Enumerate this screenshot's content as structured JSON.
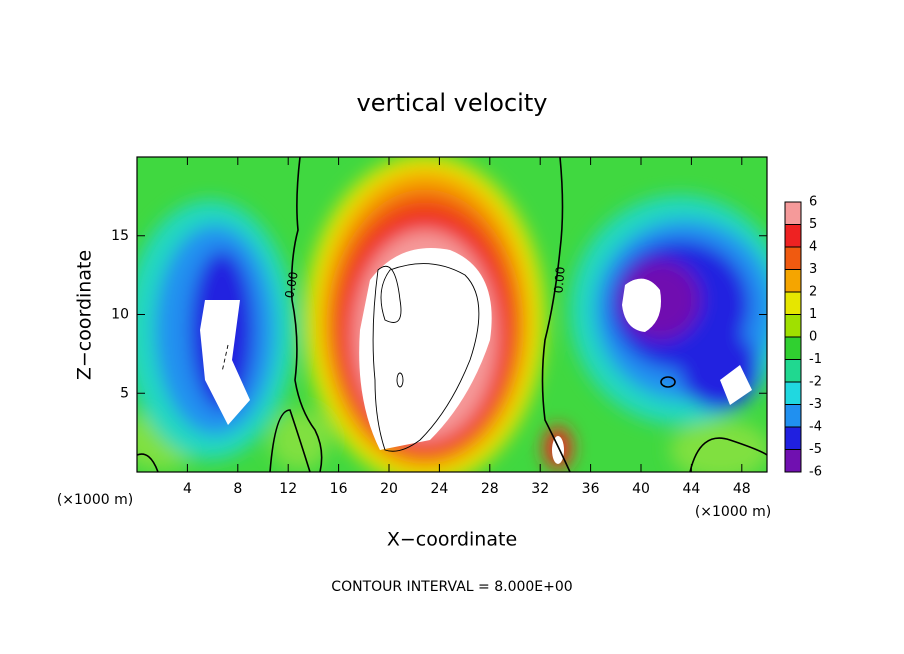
{
  "chart_data": {
    "type": "contour",
    "title": "vertical velocity",
    "x_label": "X−coordinate",
    "y_label": "Z−coordinate",
    "unit_labels": [
      "(×1000 m)",
      "(×1000 m)"
    ],
    "contour_labels": [
      "0.00",
      "0.00"
    ],
    "footnote": "CONTOUR INTERVAL = 8.000E+00",
    "xlim": [
      0,
      50
    ],
    "ylim": [
      0,
      20
    ],
    "xticks": [
      4,
      8,
      12,
      16,
      20,
      24,
      28,
      32,
      36,
      40,
      44,
      48
    ],
    "yticks": [
      5,
      10,
      15
    ],
    "colorbar": {
      "levels": [
        6,
        5,
        4,
        3,
        2,
        1,
        0,
        -1,
        -2,
        -3,
        -4,
        -5,
        -6
      ],
      "colors": [
        "#f59a9a",
        "#ee2222",
        "#f05a10",
        "#f5a500",
        "#e6e600",
        "#a0e000",
        "#30d030",
        "#20d890",
        "#20d8e0",
        "#2090f0",
        "#2020e0",
        "#7010b0"
      ]
    }
  }
}
